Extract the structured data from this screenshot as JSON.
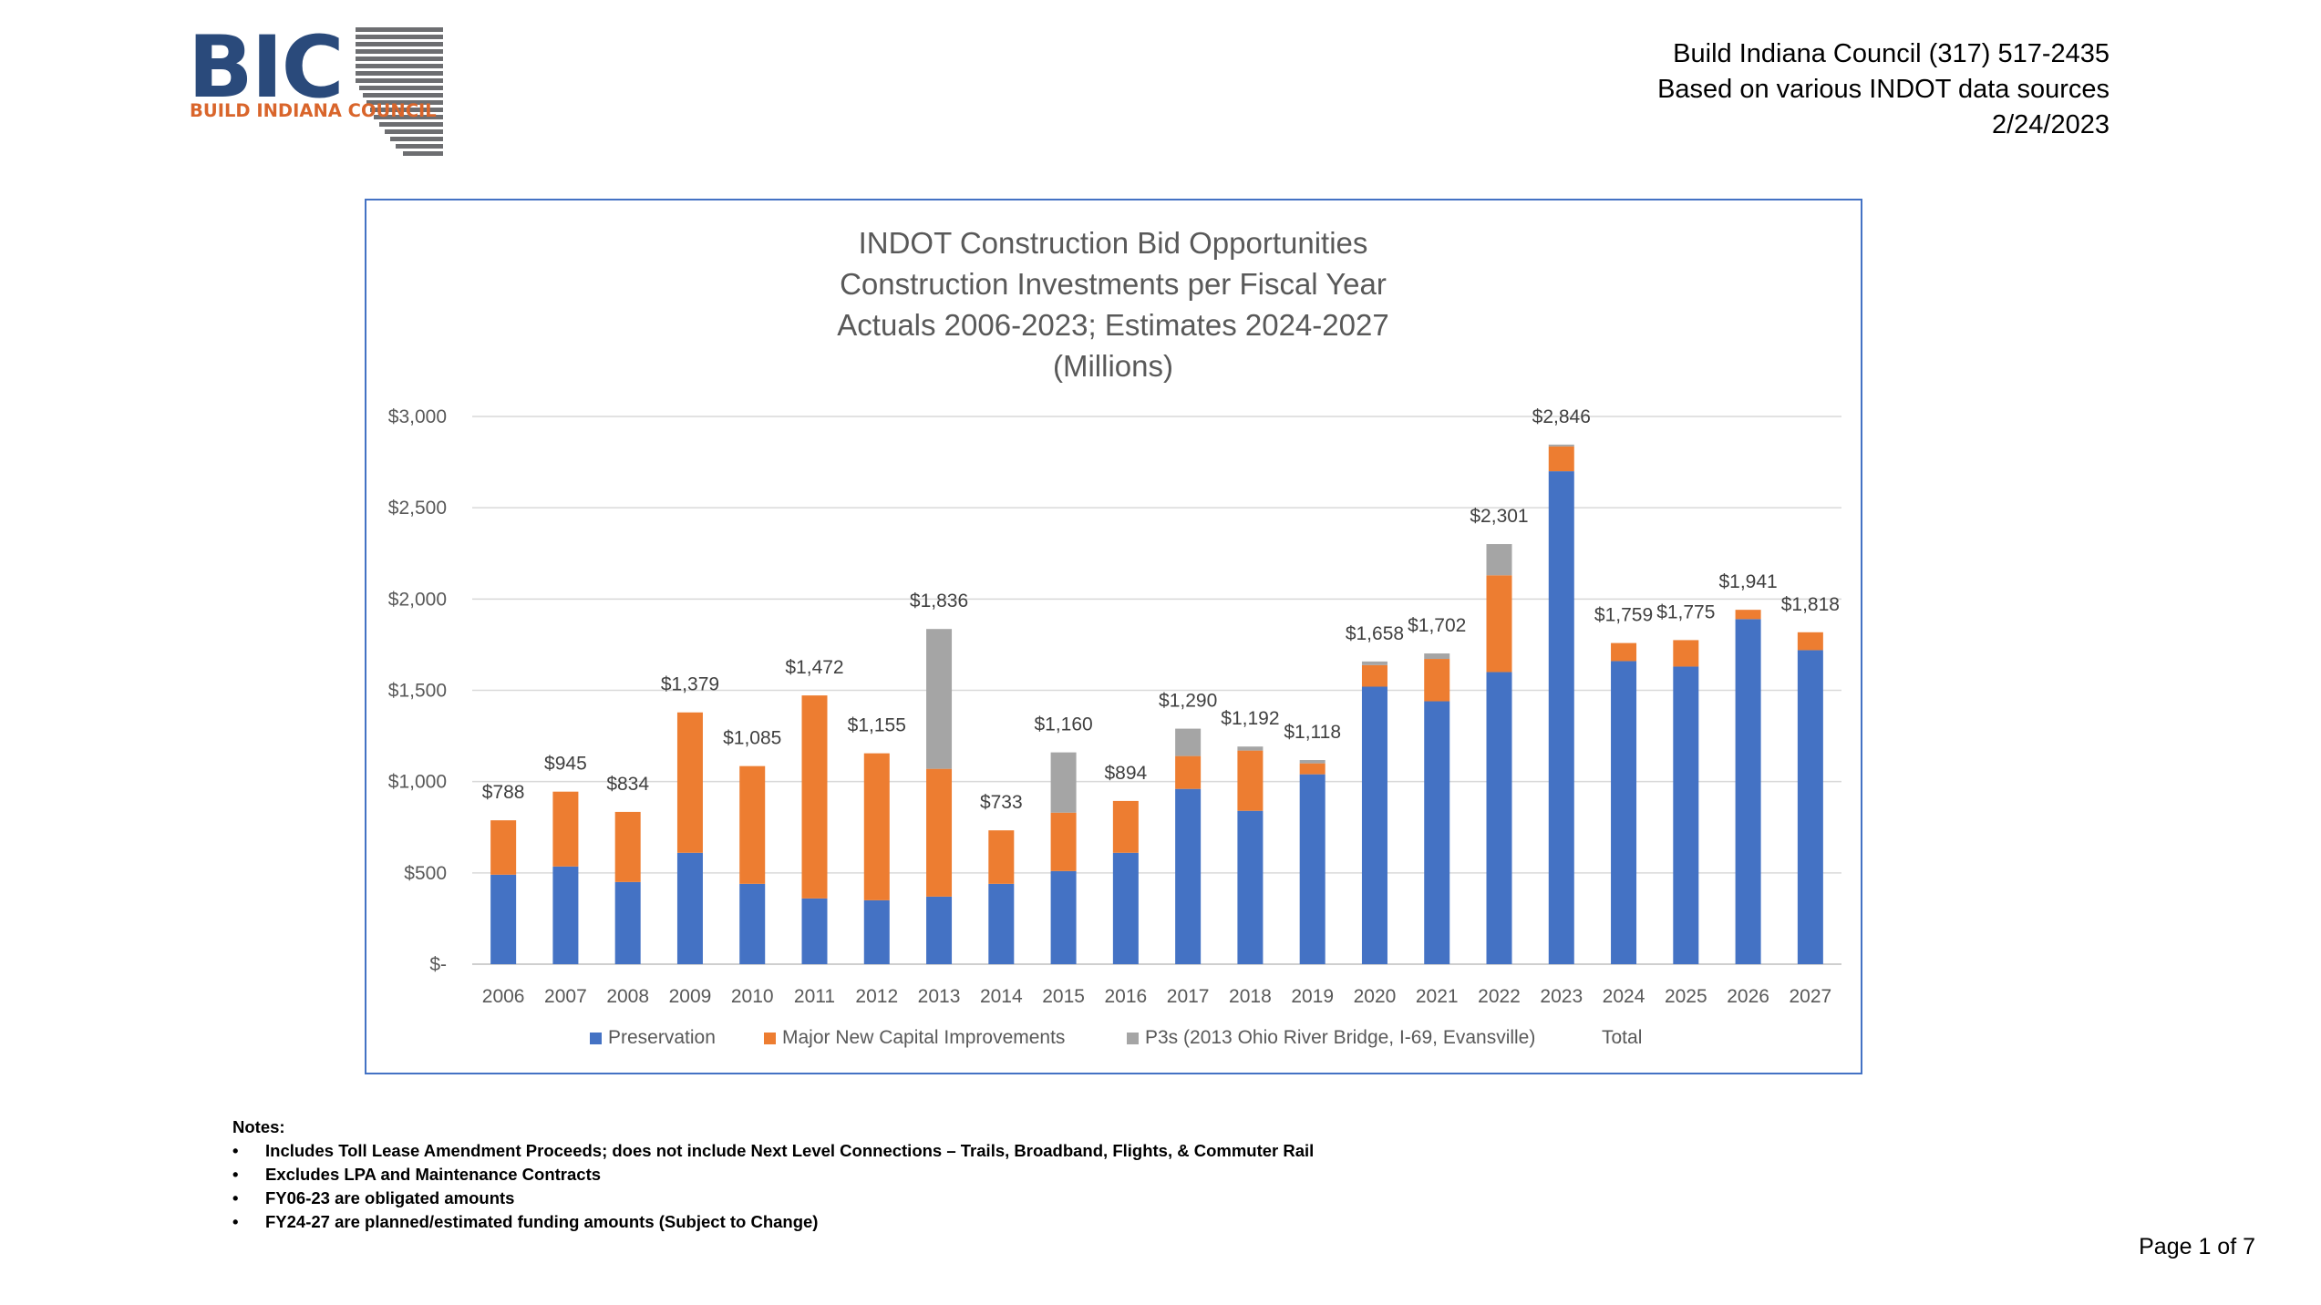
{
  "logo": {
    "mark": "BIC",
    "subtitle": "BUILD INDIANA COUNCIL",
    "colors": {
      "mark": "#2a4a7b",
      "subtitle": "#d9652b",
      "stripes": "#6d6e71"
    }
  },
  "header": {
    "line1": "Build Indiana Council (317) 517-2435",
    "line2": "Based on various INDOT data sources",
    "line3": "2/24/2023"
  },
  "chart_data": {
    "type": "bar",
    "stacked": true,
    "title": [
      "INDOT Construction Bid Opportunities",
      "Construction Investments per Fiscal Year",
      "Actuals 2006-2023; Estimates 2024-2027",
      "(Millions)"
    ],
    "xlabel": "",
    "ylabel": "",
    "ylim": [
      0,
      3000
    ],
    "y_ticks": [
      0,
      500,
      1000,
      1500,
      2000,
      2500,
      3000
    ],
    "y_tick_labels": [
      "$-",
      "$500",
      "$1,000",
      "$1,500",
      "$2,000",
      "$2,500",
      "$3,000"
    ],
    "grid": true,
    "legend_position": "bottom",
    "categories": [
      "2006",
      "2007",
      "2008",
      "2009",
      "2010",
      "2011",
      "2012",
      "2013",
      "2014",
      "2015",
      "2016",
      "2017",
      "2018",
      "2019",
      "2020",
      "2021",
      "2022",
      "2023",
      "2024",
      "2025",
      "2026",
      "2027"
    ],
    "series": [
      {
        "name": "Preservation",
        "color": "#4472c4",
        "values": [
          490,
          535,
          450,
          610,
          440,
          360,
          350,
          370,
          440,
          510,
          610,
          960,
          840,
          1040,
          1520,
          1440,
          1600,
          2700,
          1660,
          1630,
          1890,
          1720
        ]
      },
      {
        "name": "Major New Capital Improvements",
        "color": "#ed7d31",
        "values": [
          298,
          410,
          384,
          769,
          645,
          1112,
          805,
          700,
          293,
          320,
          284,
          180,
          330,
          60,
          118,
          232,
          530,
          136,
          99,
          145,
          51,
          98
        ]
      },
      {
        "name": "P3s (2013 Ohio River Bridge, I-69, Evansville)",
        "color": "#a5a5a5",
        "values": [
          0,
          0,
          0,
          0,
          0,
          0,
          0,
          766,
          0,
          330,
          0,
          150,
          22,
          18,
          20,
          30,
          171,
          10,
          0,
          0,
          0,
          0
        ]
      },
      {
        "name": "Total",
        "color": "none",
        "legend_only": true,
        "values": [
          788,
          945,
          834,
          1379,
          1085,
          1472,
          1155,
          1836,
          733,
          1160,
          894,
          1290,
          1192,
          1118,
          1658,
          1702,
          2301,
          2846,
          1759,
          1775,
          1941,
          1818
        ]
      }
    ],
    "total_labels": [
      "$788",
      "$945",
      "$834",
      "$1,379",
      "$1,085",
      "$1,472",
      "$1,155",
      "$1,836",
      "$733",
      "$1,160",
      "$894",
      "$1,290",
      "$1,192",
      "$1,118",
      "$1,658",
      "$1,702",
      "$2,301",
      "$2,846",
      "$1,759",
      "$1,775",
      "$1,941",
      "$1,818"
    ]
  },
  "notes": {
    "heading": "Notes:",
    "items": [
      "Includes Toll Lease Amendment Proceeds; does not include Next Level Connections – Trails, Broadband, Flights, & Commuter Rail",
      "Excludes LPA and Maintenance Contracts",
      "FY06-23 are obligated amounts",
      "FY24-27 are planned/estimated funding amounts (Subject to Change)"
    ]
  },
  "page_number": "Page 1 of 7"
}
